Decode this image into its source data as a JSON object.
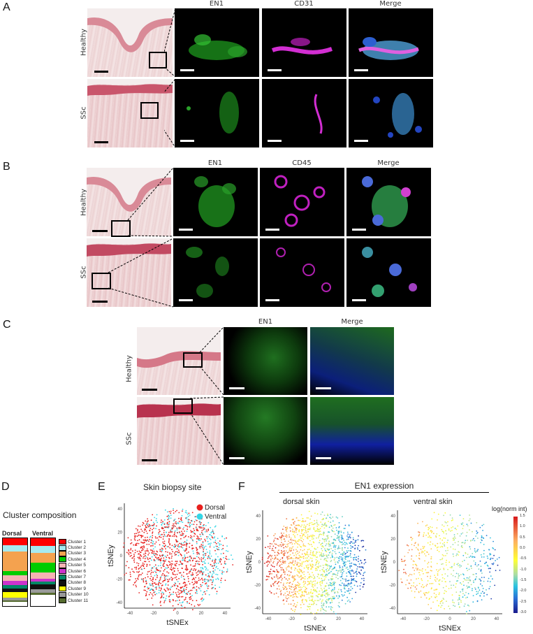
{
  "panelA": {
    "label": "A",
    "cols": [
      "EN1",
      "CD31",
      "Merge"
    ],
    "rows": [
      "Healthy",
      "SSc"
    ]
  },
  "panelB": {
    "label": "B",
    "cols": [
      "EN1",
      "CD45",
      "Merge"
    ],
    "rows": [
      "Healthy",
      "SSc"
    ]
  },
  "panelC": {
    "label": "C",
    "cols": [
      "EN1",
      "Merge"
    ],
    "rows": [
      "Healthy",
      "SSc"
    ]
  },
  "panelD": {
    "label": "D",
    "title": "Cluster composition",
    "col_dorsal": "Dorsal",
    "col_ventral": "Ventral",
    "clusters": [
      {
        "name": "Cluster 1",
        "color": "#ff0000",
        "dorsal": 0.1,
        "ventral": 0.11
      },
      {
        "name": "Cluster 2",
        "color": "#a6eaf0",
        "dorsal": 0.1,
        "ventral": 0.11
      },
      {
        "name": "Cluster 3",
        "color": "#f4a24f",
        "dorsal": 0.28,
        "ventral": 0.14
      },
      {
        "name": "Cluster 4",
        "color": "#00cc00",
        "dorsal": 0.07,
        "ventral": 0.15
      },
      {
        "name": "Cluster 5",
        "color": "#f5b3b3",
        "dorsal": 0.08,
        "ventral": 0.09
      },
      {
        "name": "Cluster 6",
        "color": "#cc33cc",
        "dorsal": 0.06,
        "ventral": 0.04
      },
      {
        "name": "Cluster 7",
        "color": "#008866",
        "dorsal": 0.05,
        "ventral": 0.04
      },
      {
        "name": "Cluster 8",
        "color": "#111111",
        "dorsal": 0.05,
        "ventral": 0.07
      },
      {
        "name": "Cluster 9",
        "color": "#ffff00",
        "dorsal": 0.09,
        "ventral": 0.0
      },
      {
        "name": "Cluster 10",
        "color": "#999999",
        "dorsal": 0.04,
        "ventral": 0.05
      },
      {
        "name": "Cluster 11",
        "color": "#556b2f",
        "dorsal": 0.02,
        "ventral": 0.03
      }
    ]
  },
  "panelE": {
    "label": "E",
    "title": "Skin biopsy site",
    "legend": [
      {
        "name": "Dorsal",
        "color": "#e8201e"
      },
      {
        "name": "Ventral",
        "color": "#34d6e6"
      }
    ],
    "xlabel": "tSNEx",
    "ylabel": "tSNEy",
    "xticks": [
      "-40",
      "-20",
      "0",
      "20",
      "40"
    ],
    "yticks": [
      "40",
      "20",
      "0",
      "-20",
      "-40"
    ]
  },
  "panelF": {
    "label": "F",
    "title": "EN1 expression",
    "sub_dorsal": "dorsal skin",
    "sub_ventral": "ventral skin",
    "xlabel": "tSNEx",
    "ylabel": "tSNEy",
    "xticks": [
      "-40",
      "-20",
      "0",
      "20",
      "40"
    ],
    "yticks": [
      "40",
      "20",
      "0",
      "-20",
      "-40"
    ],
    "colorbar_title": "log(norm int)",
    "colorbar_ticks": [
      "1.5",
      "1.0",
      "0.5",
      "0.0",
      "-0.5",
      "-1.0",
      "-1.5",
      "-2.0",
      "-2.5",
      "-3.0"
    ]
  }
}
